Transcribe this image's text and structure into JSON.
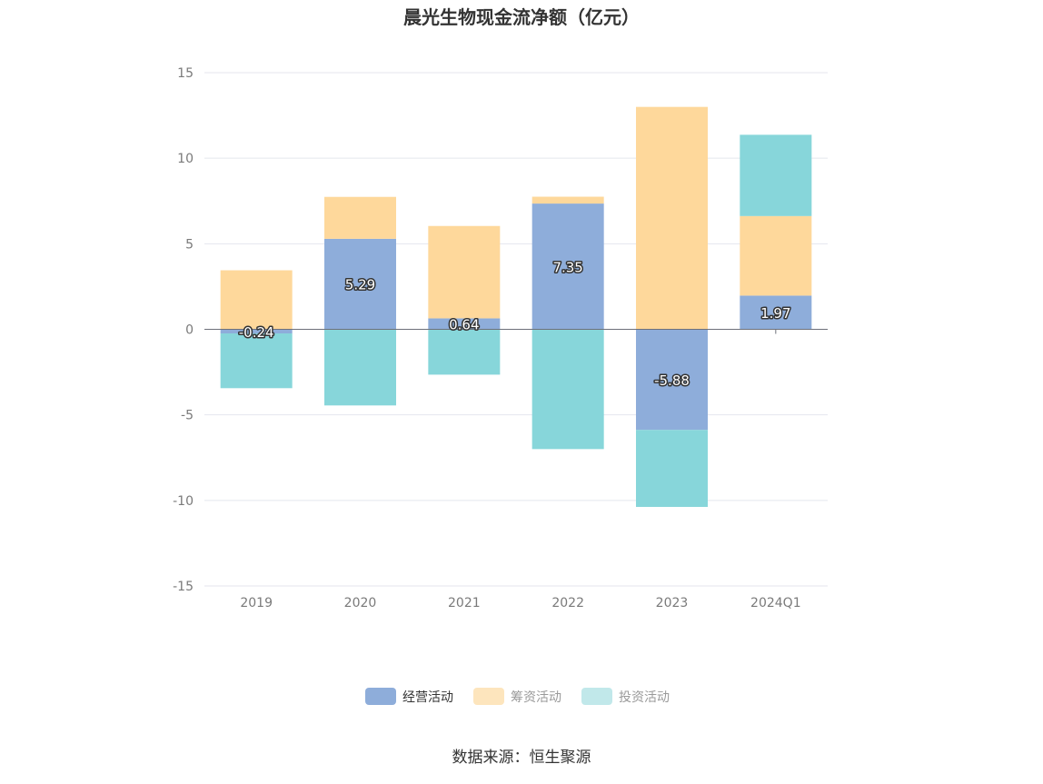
{
  "chart_data": {
    "type": "bar",
    "stacked": true,
    "title": "晨光生物现金流净额（亿元）",
    "categories": [
      "2019",
      "2020",
      "2021",
      "2022",
      "2023",
      "2024Q1"
    ],
    "series": [
      {
        "name": "经营活动",
        "color": "#8eadda",
        "values": [
          -0.24,
          5.29,
          0.64,
          7.35,
          -5.88,
          1.97
        ],
        "show_labels": true
      },
      {
        "name": "筹资活动",
        "color": "#fed89b",
        "values": [
          3.45,
          2.45,
          5.4,
          0.4,
          13.0,
          4.65
        ],
        "show_labels": false
      },
      {
        "name": "投资活动",
        "color": "#87d6da",
        "values": [
          -3.2,
          -4.45,
          -2.65,
          -7.0,
          -4.5,
          4.75
        ],
        "show_labels": false
      }
    ],
    "ylim": [
      -15,
      15
    ],
    "yticks": [
      15,
      10,
      5,
      0,
      -5,
      -10,
      -15
    ],
    "grid": true,
    "legend_position": "bottom-center",
    "legend": [
      {
        "name": "经营活动",
        "color": "#8eadda",
        "active": true
      },
      {
        "name": "筹资活动",
        "color": "#fde5bd",
        "active": false
      },
      {
        "name": "投资活动",
        "color": "#c1e8ea",
        "active": false
      }
    ]
  },
  "source_note": "数据来源：恒生聚源"
}
